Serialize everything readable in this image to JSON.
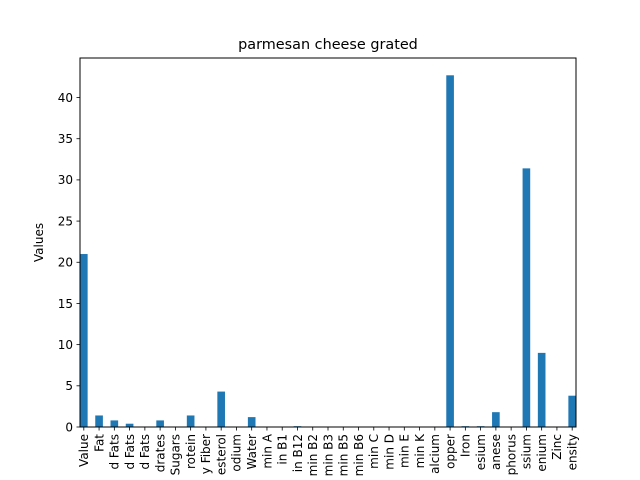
{
  "chart_data": {
    "type": "bar",
    "title": "parmesan cheese grated",
    "xlabel": "",
    "ylabel": "Values",
    "ylim": [
      0,
      44.8
    ],
    "yticks": [
      0,
      5,
      10,
      15,
      20,
      25,
      30,
      35,
      40
    ],
    "grid": false,
    "legend": "none",
    "bar_color": "#1f77b4",
    "categories": [
      "Value",
      "Fat",
      "d Fats",
      "d Fats",
      "d Fats",
      "drates",
      "Sugars",
      "rotein",
      "y Fiber",
      "esterol",
      "odium",
      "Water",
      "min A",
      "in B1",
      "in B12",
      "min B2",
      "min B3",
      "min B5",
      "min B6",
      "min C",
      "min D",
      "min E",
      "min K",
      "alcium",
      "opper",
      "Iron",
      "esium",
      "anese",
      "phorus",
      "ssium",
      "enium",
      "Zinc",
      "ensity"
    ],
    "values": [
      21.0,
      1.4,
      0.8,
      0.4,
      0.0,
      0.8,
      0.0,
      1.4,
      0.0,
      4.3,
      0.0,
      1.2,
      0.0,
      0.0,
      0.1,
      0.0,
      0.0,
      0.0,
      0.0,
      0.0,
      0.0,
      0.0,
      0.0,
      0.0,
      42.7,
      0.1,
      0.1,
      1.8,
      0.0,
      31.4,
      9.0,
      0.0,
      3.8
    ]
  }
}
